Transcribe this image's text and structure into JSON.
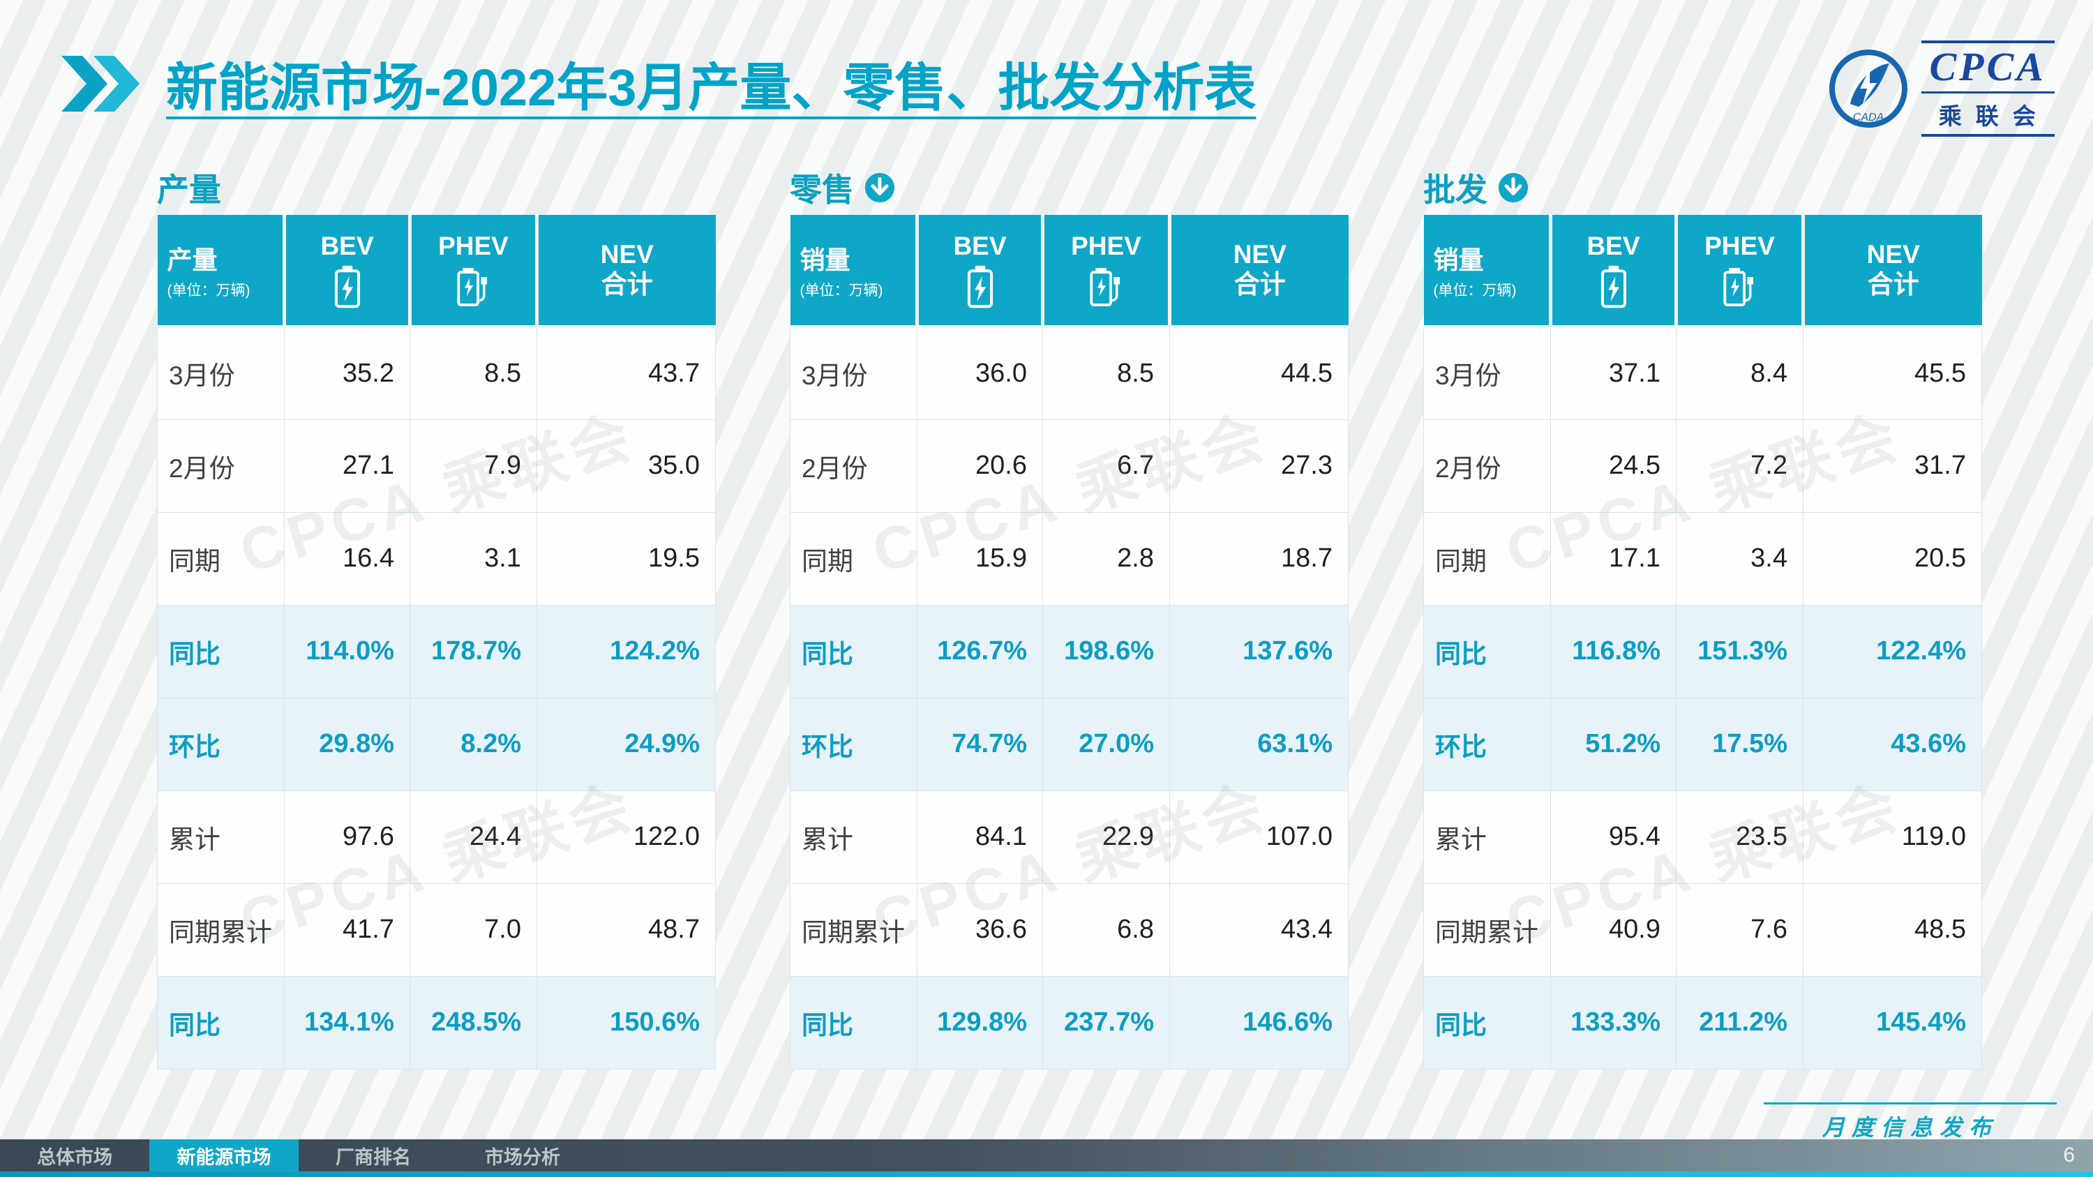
{
  "slide": {
    "title_prefix": "新能源市场",
    "title_rest": "-2022年3月产量、零售、批发分析表",
    "footer_note": "月度信息发布",
    "page_number": "6"
  },
  "logo": {
    "cpca": "CPCA",
    "sub": "乘联会",
    "cada": "CADA"
  },
  "nav": {
    "tabs": [
      {
        "label": "总体市场",
        "active": false
      },
      {
        "label": "新能源市场",
        "active": true
      },
      {
        "label": "厂商排名",
        "active": false
      },
      {
        "label": "市场分析",
        "active": false
      }
    ]
  },
  "watermark": {
    "text": "CPCA 乘联会"
  },
  "colors": {
    "accent": "#0FA7C7",
    "title_teal": "#00A3C8",
    "highlight_row_bg": "#E7F2F9",
    "highlight_text": "#0D9DC2",
    "logo_blue": "#17499C",
    "nav_bar": "#3E4E58"
  },
  "tables": [
    {
      "section_label": "产量",
      "arrow_icon": false,
      "header": {
        "label": "产量",
        "unit": "(单位：万辆)",
        "cols": [
          {
            "label": "BEV",
            "icon": "battery"
          },
          {
            "label": "PHEV",
            "icon": "charger"
          },
          {
            "label": "NEV\n合计",
            "icon": null
          }
        ]
      },
      "rows": [
        {
          "label": "3月份",
          "values": [
            "35.2",
            "8.5",
            "43.7"
          ],
          "highlight": false
        },
        {
          "label": "2月份",
          "values": [
            "27.1",
            "7.9",
            "35.0"
          ],
          "highlight": false
        },
        {
          "label": "同期",
          "values": [
            "16.4",
            "3.1",
            "19.5"
          ],
          "highlight": false
        },
        {
          "label": "同比",
          "values": [
            "114.0%",
            "178.7%",
            "124.2%"
          ],
          "highlight": true
        },
        {
          "label": "环比",
          "values": [
            "29.8%",
            "8.2%",
            "24.9%"
          ],
          "highlight": true
        },
        {
          "label": "累计",
          "values": [
            "97.6",
            "24.4",
            "122.0"
          ],
          "highlight": false
        },
        {
          "label": "同期累计",
          "values": [
            "41.7",
            "7.0",
            "48.7"
          ],
          "highlight": false
        },
        {
          "label": "同比",
          "values": [
            "134.1%",
            "248.5%",
            "150.6%"
          ],
          "highlight": true
        }
      ]
    },
    {
      "section_label": "零售",
      "arrow_icon": true,
      "header": {
        "label": "销量",
        "unit": "(单位：万辆)",
        "cols": [
          {
            "label": "BEV",
            "icon": "battery"
          },
          {
            "label": "PHEV",
            "icon": "charger"
          },
          {
            "label": "NEV\n合计",
            "icon": null
          }
        ]
      },
      "rows": [
        {
          "label": "3月份",
          "values": [
            "36.0",
            "8.5",
            "44.5"
          ],
          "highlight": false
        },
        {
          "label": "2月份",
          "values": [
            "20.6",
            "6.7",
            "27.3"
          ],
          "highlight": false
        },
        {
          "label": "同期",
          "values": [
            "15.9",
            "2.8",
            "18.7"
          ],
          "highlight": false
        },
        {
          "label": "同比",
          "values": [
            "126.7%",
            "198.6%",
            "137.6%"
          ],
          "highlight": true
        },
        {
          "label": "环比",
          "values": [
            "74.7%",
            "27.0%",
            "63.1%"
          ],
          "highlight": true
        },
        {
          "label": "累计",
          "values": [
            "84.1",
            "22.9",
            "107.0"
          ],
          "highlight": false
        },
        {
          "label": "同期累计",
          "values": [
            "36.6",
            "6.8",
            "43.4"
          ],
          "highlight": false
        },
        {
          "label": "同比",
          "values": [
            "129.8%",
            "237.7%",
            "146.6%"
          ],
          "highlight": true
        }
      ]
    },
    {
      "section_label": "批发",
      "arrow_icon": true,
      "header": {
        "label": "销量",
        "unit": "(单位：万辆)",
        "cols": [
          {
            "label": "BEV",
            "icon": "battery"
          },
          {
            "label": "PHEV",
            "icon": "charger"
          },
          {
            "label": "NEV\n合计",
            "icon": null
          }
        ]
      },
      "rows": [
        {
          "label": "3月份",
          "values": [
            "37.1",
            "8.4",
            "45.5"
          ],
          "highlight": false
        },
        {
          "label": "2月份",
          "values": [
            "24.5",
            "7.2",
            "31.7"
          ],
          "highlight": false
        },
        {
          "label": "同期",
          "values": [
            "17.1",
            "3.4",
            "20.5"
          ],
          "highlight": false
        },
        {
          "label": "同比",
          "values": [
            "116.8%",
            "151.3%",
            "122.4%"
          ],
          "highlight": true
        },
        {
          "label": "环比",
          "values": [
            "51.2%",
            "17.5%",
            "43.6%"
          ],
          "highlight": true
        },
        {
          "label": "累计",
          "values": [
            "95.4",
            "23.5",
            "119.0"
          ],
          "highlight": false
        },
        {
          "label": "同期累计",
          "values": [
            "40.9",
            "7.6",
            "48.5"
          ],
          "highlight": false
        },
        {
          "label": "同比",
          "values": [
            "133.3%",
            "211.2%",
            "145.4%"
          ],
          "highlight": true
        }
      ]
    }
  ]
}
